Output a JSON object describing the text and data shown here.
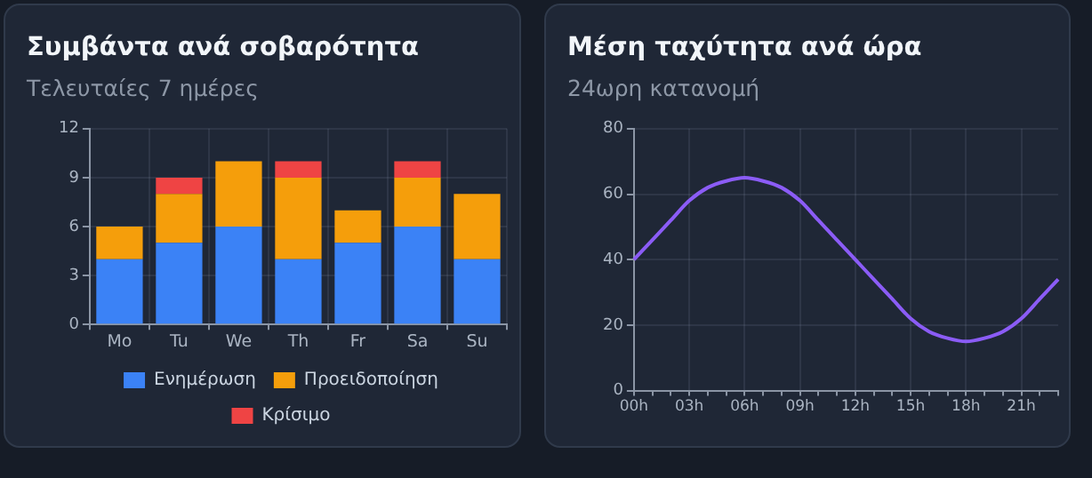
{
  "chart_data": [
    {
      "type": "bar",
      "title": "Συμβάντα ανά σοβαρότητα",
      "subtitle": "Τελευταίες 7 ημέρες",
      "categories": [
        "Mo",
        "Tu",
        "We",
        "Th",
        "Fr",
        "Sa",
        "Su"
      ],
      "stacked": true,
      "series": [
        {
          "name": "Ενημέρωση",
          "color": "#3b82f6",
          "values": [
            4,
            5,
            6,
            4,
            5,
            6,
            4
          ]
        },
        {
          "name": "Προειδοποίηση",
          "color": "#f59e0b",
          "values": [
            2,
            3,
            4,
            5,
            2,
            3,
            4
          ]
        },
        {
          "name": "Κρίσιμο",
          "color": "#ef4444",
          "values": [
            0,
            1,
            0,
            1,
            0,
            1,
            0
          ]
        }
      ],
      "ylim": [
        0,
        12
      ],
      "yticks": [
        0,
        3,
        6,
        9,
        12
      ],
      "grid": true,
      "legend": "bottom"
    },
    {
      "type": "line",
      "title": "Μέση ταχύτητα ανά ώρα",
      "subtitle": "24ωρη κατανομή",
      "categories": [
        "00h",
        null,
        null,
        "03h",
        null,
        null,
        "06h",
        null,
        null,
        "09h",
        null,
        null,
        "12h",
        null,
        null,
        "15h",
        null,
        null,
        "18h",
        null,
        null,
        "21h",
        null,
        null
      ],
      "series": [
        {
          "color": "#8b5cf6",
          "values": [
            40,
            46,
            52,
            58,
            62,
            64,
            65,
            64,
            62,
            58,
            52,
            46,
            40,
            34,
            28,
            22,
            18,
            16,
            15,
            16,
            18,
            22,
            28,
            34
          ]
        }
      ],
      "ylim": [
        0,
        80
      ],
      "yticks": [
        0,
        20,
        40,
        60,
        80
      ],
      "grid": true,
      "marker": "none"
    }
  ]
}
